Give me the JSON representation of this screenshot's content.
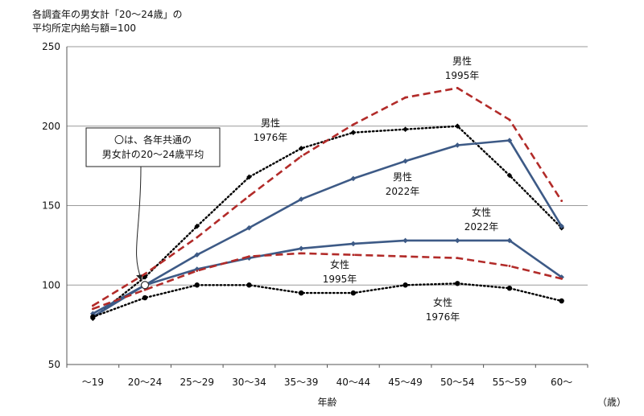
{
  "chart_data": {
    "type": "line",
    "title": "各調査年の男女計「20～24歳」の",
    "subtitle": "平均所定内給与額=100",
    "xlabel": "年齢",
    "xunit": "（歳）",
    "ylabel": "",
    "ylim": [
      50,
      250
    ],
    "yticks": [
      50,
      100,
      150,
      200,
      250
    ],
    "grid": true,
    "legend": "none",
    "categories": [
      "～19",
      "20～24",
      "25～29",
      "30～34",
      "35～39",
      "40～44",
      "45～49",
      "50～54",
      "55～59",
      "60～"
    ],
    "series": [
      {
        "name": "男性\n1976年",
        "color": "#000000",
        "style": "dotted",
        "marker": "diamond",
        "values": [
          79,
          105,
          137,
          168,
          186,
          196,
          198,
          200,
          169,
          136
        ]
      },
      {
        "name": "男性\n1995年",
        "color": "#b22b29",
        "style": "dashed",
        "marker": "none",
        "values": [
          87,
          107,
          130,
          156,
          181,
          201,
          218,
          224,
          204,
          153
        ]
      },
      {
        "name": "男性\n2022年",
        "color": "#3d5a86",
        "style": "solid",
        "marker": "diamond",
        "values": [
          82,
          100,
          119,
          136,
          154,
          167,
          178,
          188,
          191,
          137
        ]
      },
      {
        "name": "女性\n2022年",
        "color": "#3d5a86",
        "style": "solid",
        "marker": "diamond",
        "values": [
          80,
          100,
          110,
          117,
          123,
          126,
          128,
          128,
          128,
          105
        ]
      },
      {
        "name": "女性\n1995年",
        "color": "#b22b29",
        "style": "dashed",
        "marker": "none",
        "values": [
          85,
          97,
          109,
          118,
          120,
          119,
          118,
          117,
          112,
          104
        ]
      },
      {
        "name": "女性\n1976年",
        "color": "#000000",
        "style": "dotted",
        "marker": "circle",
        "values": [
          80,
          92,
          100,
          100,
          95,
          95,
          100,
          101,
          98,
          90
        ]
      }
    ],
    "annotations": [
      {
        "text": "〇は、各年共通の\n男女計の20～24歳平均",
        "target": "20～24"
      }
    ]
  }
}
